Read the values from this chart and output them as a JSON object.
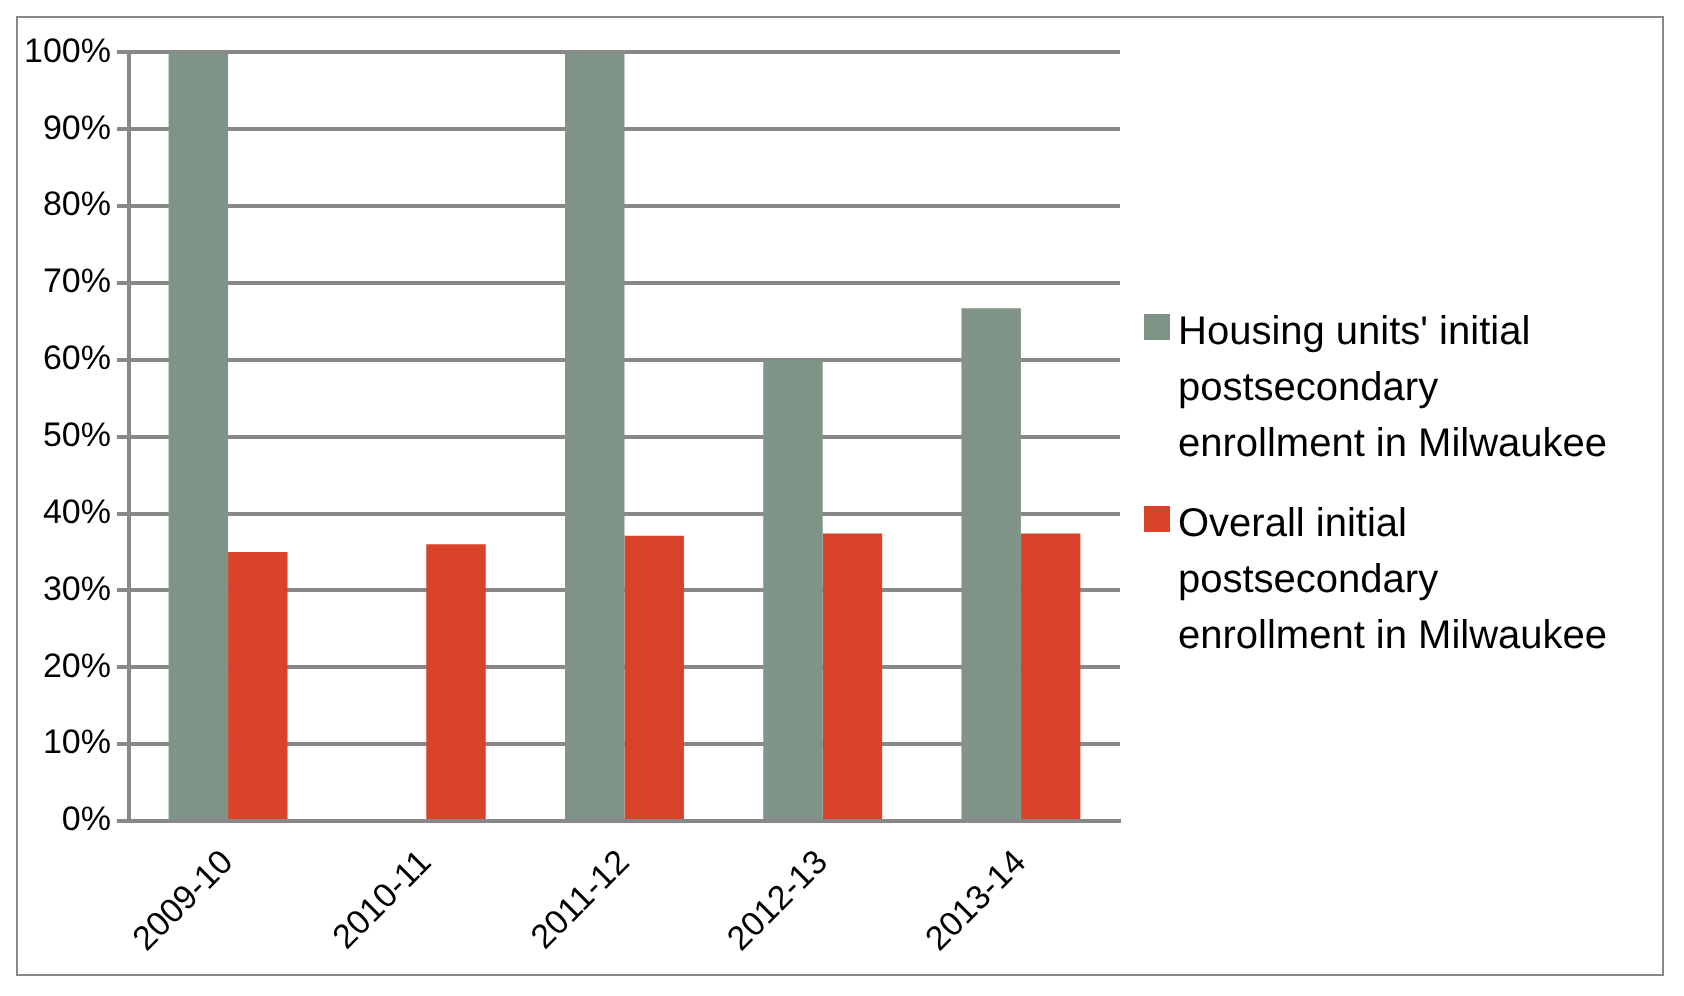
{
  "chart_data": {
    "type": "bar",
    "categories": [
      "2009-10",
      "2010-11",
      "2011-12",
      "2012-13",
      "2013-14"
    ],
    "series": [
      {
        "name": "Housing units' initial postsecondary enrollment in Milwaukee",
        "color": "#7f9486",
        "values": [
          100,
          null,
          100,
          60,
          66.7
        ]
      },
      {
        "name": "Overall initial postsecondary enrollment in Milwaukee",
        "color": "#d9432a",
        "values": [
          35,
          36,
          37.1,
          37.4,
          37.4
        ]
      }
    ],
    "ylim": [
      0,
      100
    ],
    "yticks": [
      {
        "value": 0,
        "label": "0%"
      },
      {
        "value": 10,
        "label": "10%"
      },
      {
        "value": 20,
        "label": "20%"
      },
      {
        "value": 30,
        "label": "30%"
      },
      {
        "value": 40,
        "label": "40%"
      },
      {
        "value": 50,
        "label": "50%"
      },
      {
        "value": 60,
        "label": "60%"
      },
      {
        "value": 70,
        "label": "70%"
      },
      {
        "value": 80,
        "label": "80%"
      },
      {
        "value": 90,
        "label": "90%"
      },
      {
        "value": 100,
        "label": "100%"
      }
    ],
    "grid": "y",
    "legend": "right"
  }
}
